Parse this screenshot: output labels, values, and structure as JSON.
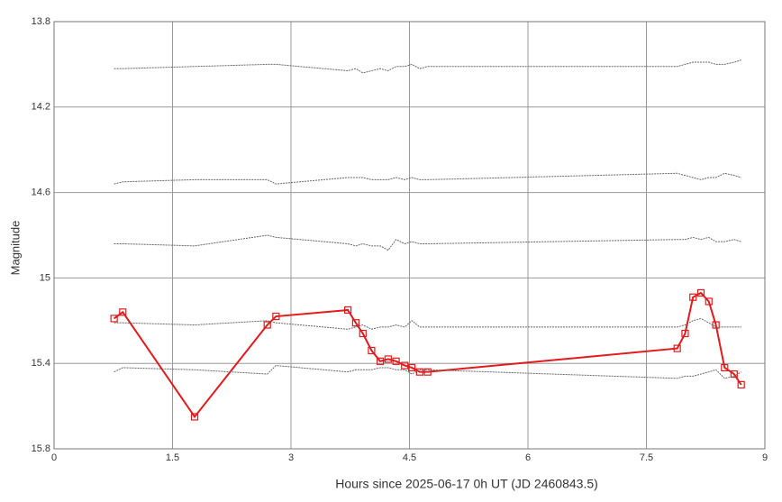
{
  "chart_data": {
    "type": "line",
    "xlabel": "Hours since 2025-06-17 0h UT (JD 2460843.5)",
    "ylabel": "Magnitude",
    "xlim": [
      0,
      9
    ],
    "xticks": [
      0,
      1.5,
      3,
      4.5,
      6,
      7.5,
      9
    ],
    "ylim": [
      15.8,
      13.8
    ],
    "yticks": [
      13.8,
      14.2,
      14.6,
      15,
      15.4,
      15.8
    ],
    "grid": true,
    "x": [
      0.76,
      0.87,
      1.78,
      2.7,
      2.81,
      3.72,
      3.82,
      3.91,
      4.02,
      4.13,
      4.23,
      4.33,
      4.44,
      4.53,
      4.63,
      4.73,
      7.89,
      7.99,
      8.09,
      8.19,
      8.29,
      8.38,
      8.49,
      8.61,
      8.7
    ],
    "series": [
      {
        "color": "#e31a1c",
        "markers": true,
        "values": [
          15.19,
          15.16,
          15.65,
          15.22,
          15.18,
          15.15,
          15.21,
          15.26,
          15.34,
          15.39,
          15.38,
          15.39,
          15.41,
          15.42,
          15.44,
          15.44,
          15.33,
          15.26,
          15.09,
          15.07,
          15.11,
          15.22,
          15.42,
          15.45,
          15.5
        ]
      },
      {
        "color": "#666666",
        "markers": false,
        "values": [
          14.02,
          14.02,
          14.01,
          14.0,
          14.0,
          14.03,
          14.02,
          14.04,
          14.03,
          14.02,
          14.03,
          14.01,
          14.01,
          14.0,
          14.02,
          14.01,
          14.01,
          14.0,
          13.99,
          13.99,
          13.99,
          14.0,
          14.0,
          13.99,
          13.98
        ]
      },
      {
        "color": "#666666",
        "markers": false,
        "values": [
          14.56,
          14.55,
          14.54,
          14.54,
          14.56,
          14.53,
          14.53,
          14.53,
          14.54,
          14.54,
          14.54,
          14.53,
          14.54,
          14.53,
          14.54,
          14.54,
          14.51,
          14.52,
          14.53,
          14.54,
          14.53,
          14.53,
          14.51,
          14.52,
          14.53
        ]
      },
      {
        "color": "#666666",
        "markers": false,
        "values": [
          14.84,
          14.84,
          14.85,
          14.8,
          14.81,
          14.84,
          14.85,
          14.84,
          14.85,
          14.85,
          14.87,
          14.82,
          14.84,
          14.83,
          14.84,
          14.84,
          14.82,
          14.82,
          14.81,
          14.82,
          14.81,
          14.83,
          14.83,
          14.82,
          14.83
        ]
      },
      {
        "color": "#666666",
        "markers": false,
        "values": [
          15.21,
          15.21,
          15.22,
          15.2,
          15.21,
          15.24,
          15.23,
          15.22,
          15.24,
          15.23,
          15.23,
          15.22,
          15.23,
          15.2,
          15.23,
          15.23,
          15.23,
          15.22,
          15.2,
          15.19,
          15.21,
          15.23,
          15.23,
          15.23,
          15.23
        ]
      },
      {
        "color": "#666666",
        "markers": false,
        "values": [
          15.44,
          15.42,
          15.43,
          15.45,
          15.41,
          15.44,
          15.43,
          15.43,
          15.43,
          15.42,
          15.42,
          15.43,
          15.43,
          15.45,
          15.43,
          15.43,
          15.47,
          15.46,
          15.46,
          15.45,
          15.44,
          15.43,
          15.47,
          15.46,
          15.44
        ]
      }
    ]
  }
}
